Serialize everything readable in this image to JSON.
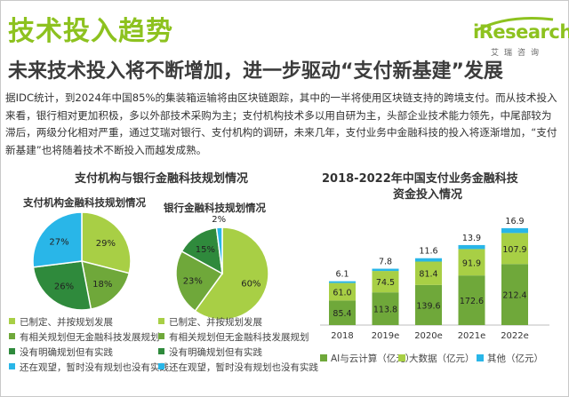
{
  "page": {
    "title": "技术投入趋势",
    "subtitle": "未来技术投入将不断增加，进一步驱动“支付新基建”发展",
    "logo_text": "iResearch",
    "logo_cn": "艾瑞咨询",
    "paragraph": "据IDC统计，到2024年中国85%的集装箱运输将由区块链跟踪，其中的一半将使用区块链支持的跨境支付。而从技术投入来看，银行相对更加积极，多以外部技术采购为主；支付机构技术多以用自研为主，头部企业技术能力领先，中尾部较为滞后，两级分化相对严重，通过艾瑞对银行、支付机构的调研，未来几年，支付业务中金融科技的投入将逐渐增加，“支付新基建”也将随着技术不断投入而越发成熟。",
    "left_section_title": "支付机构与银行金融科技规划情况",
    "right_section_title_line1": "2018-2022年中国支付业务金融科技",
    "right_section_title_line2": "资金投入情况"
  },
  "colors": {
    "green_light": "#a8cf45",
    "green_mid": "#6fa83a",
    "green_dark": "#2f8a3c",
    "blue": "#29b6e8",
    "title_green": "#8dc21f"
  },
  "chart_data": [
    {
      "type": "pie",
      "title": "支付机构金融科技规划情况",
      "labels": [
        "已制定、并按规划发展",
        "有相关规划但无金融科技发展规划",
        "没有明确规划但有实践",
        "还在观望，暂时没有规划也没有实践"
      ],
      "values": [
        29,
        18,
        26,
        27
      ],
      "value_labels": [
        "29%",
        "18%",
        "26%",
        "27%"
      ],
      "colors": [
        "#a8cf45",
        "#6fa83a",
        "#2f8a3c",
        "#29b6e8"
      ]
    },
    {
      "type": "pie",
      "title": "银行金融科技规划情况",
      "labels": [
        "已制定、并按规划发展",
        "有相关规划但无金融科技发展规划",
        "没有明确规划但有实践",
        "还在观望，暂时没有规划也没有实践"
      ],
      "values": [
        60,
        23,
        15,
        2
      ],
      "value_labels": [
        "60%",
        "23%",
        "15%",
        "2%"
      ],
      "colors": [
        "#a8cf45",
        "#6fa83a",
        "#2f8a3c",
        "#29b6e8"
      ]
    },
    {
      "type": "bar",
      "stacked": true,
      "title": "2018-2022年中国支付业务金融科技资金投入情况",
      "categories": [
        "2018",
        "2019e",
        "2020e",
        "2021e",
        "2022e"
      ],
      "series": [
        {
          "name": "AI与云计算（亿元）",
          "values": [
            85.4,
            113.8,
            139.6,
            172.6,
            212.4
          ],
          "color": "#6fa83a"
        },
        {
          "name": "大数据（亿元）",
          "values": [
            61.0,
            74.5,
            81.4,
            91.9,
            107.9
          ],
          "color": "#a8cf45"
        },
        {
          "name": "其他（亿元）",
          "values": [
            6.1,
            7.8,
            11.6,
            13.9,
            16.9
          ],
          "color": "#29b6e8"
        }
      ],
      "labels_series": [
        [
          "85.4",
          "113.8",
          "139.6",
          "172.6",
          "212.4"
        ],
        [
          "61.0",
          "74.5",
          "81.4",
          "91.9",
          "107.9"
        ],
        [
          "6.1",
          "7.8",
          "11.6",
          "13.9",
          "16.9"
        ]
      ],
      "ylim": [
        0,
        340
      ]
    }
  ]
}
